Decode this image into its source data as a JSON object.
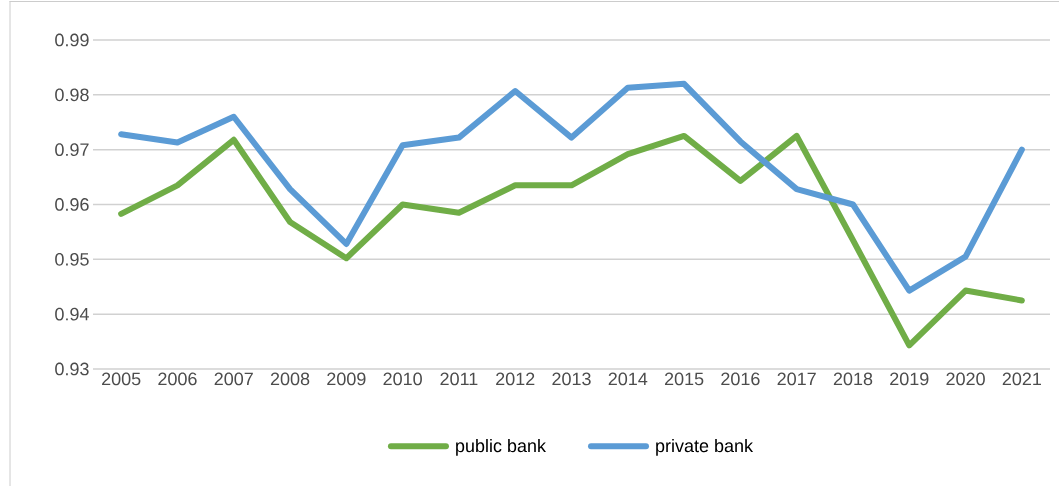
{
  "chart_data": {
    "type": "line",
    "categories": [
      "2005",
      "2006",
      "2007",
      "2008",
      "2009",
      "2010",
      "2011",
      "2012",
      "2013",
      "2014",
      "2015",
      "2016",
      "2017",
      "2018",
      "2019",
      "2020",
      "2021"
    ],
    "series": [
      {
        "name": "public bank",
        "color": "#70ad47",
        "values": [
          0.9583,
          0.9635,
          0.9718,
          0.9568,
          0.9502,
          0.96,
          0.9585,
          0.9635,
          0.9635,
          0.9692,
          0.9725,
          0.9643,
          0.9725,
          0.9535,
          0.9343,
          0.9443,
          0.9425
        ]
      },
      {
        "name": "private bank",
        "color": "#5b9bd5",
        "values": [
          0.9728,
          0.9713,
          0.976,
          0.9628,
          0.9528,
          0.9708,
          0.9722,
          0.9807,
          0.9722,
          0.9813,
          0.982,
          0.9715,
          0.9628,
          0.96,
          0.9443,
          0.9505,
          0.97
        ]
      }
    ],
    "ylim": [
      0.93,
      0.99
    ],
    "yticks": [
      0.93,
      0.94,
      0.95,
      0.96,
      0.97,
      0.98,
      0.99
    ],
    "grid": "y",
    "legend": "bottom",
    "marker": "none",
    "line_style": "solid"
  }
}
